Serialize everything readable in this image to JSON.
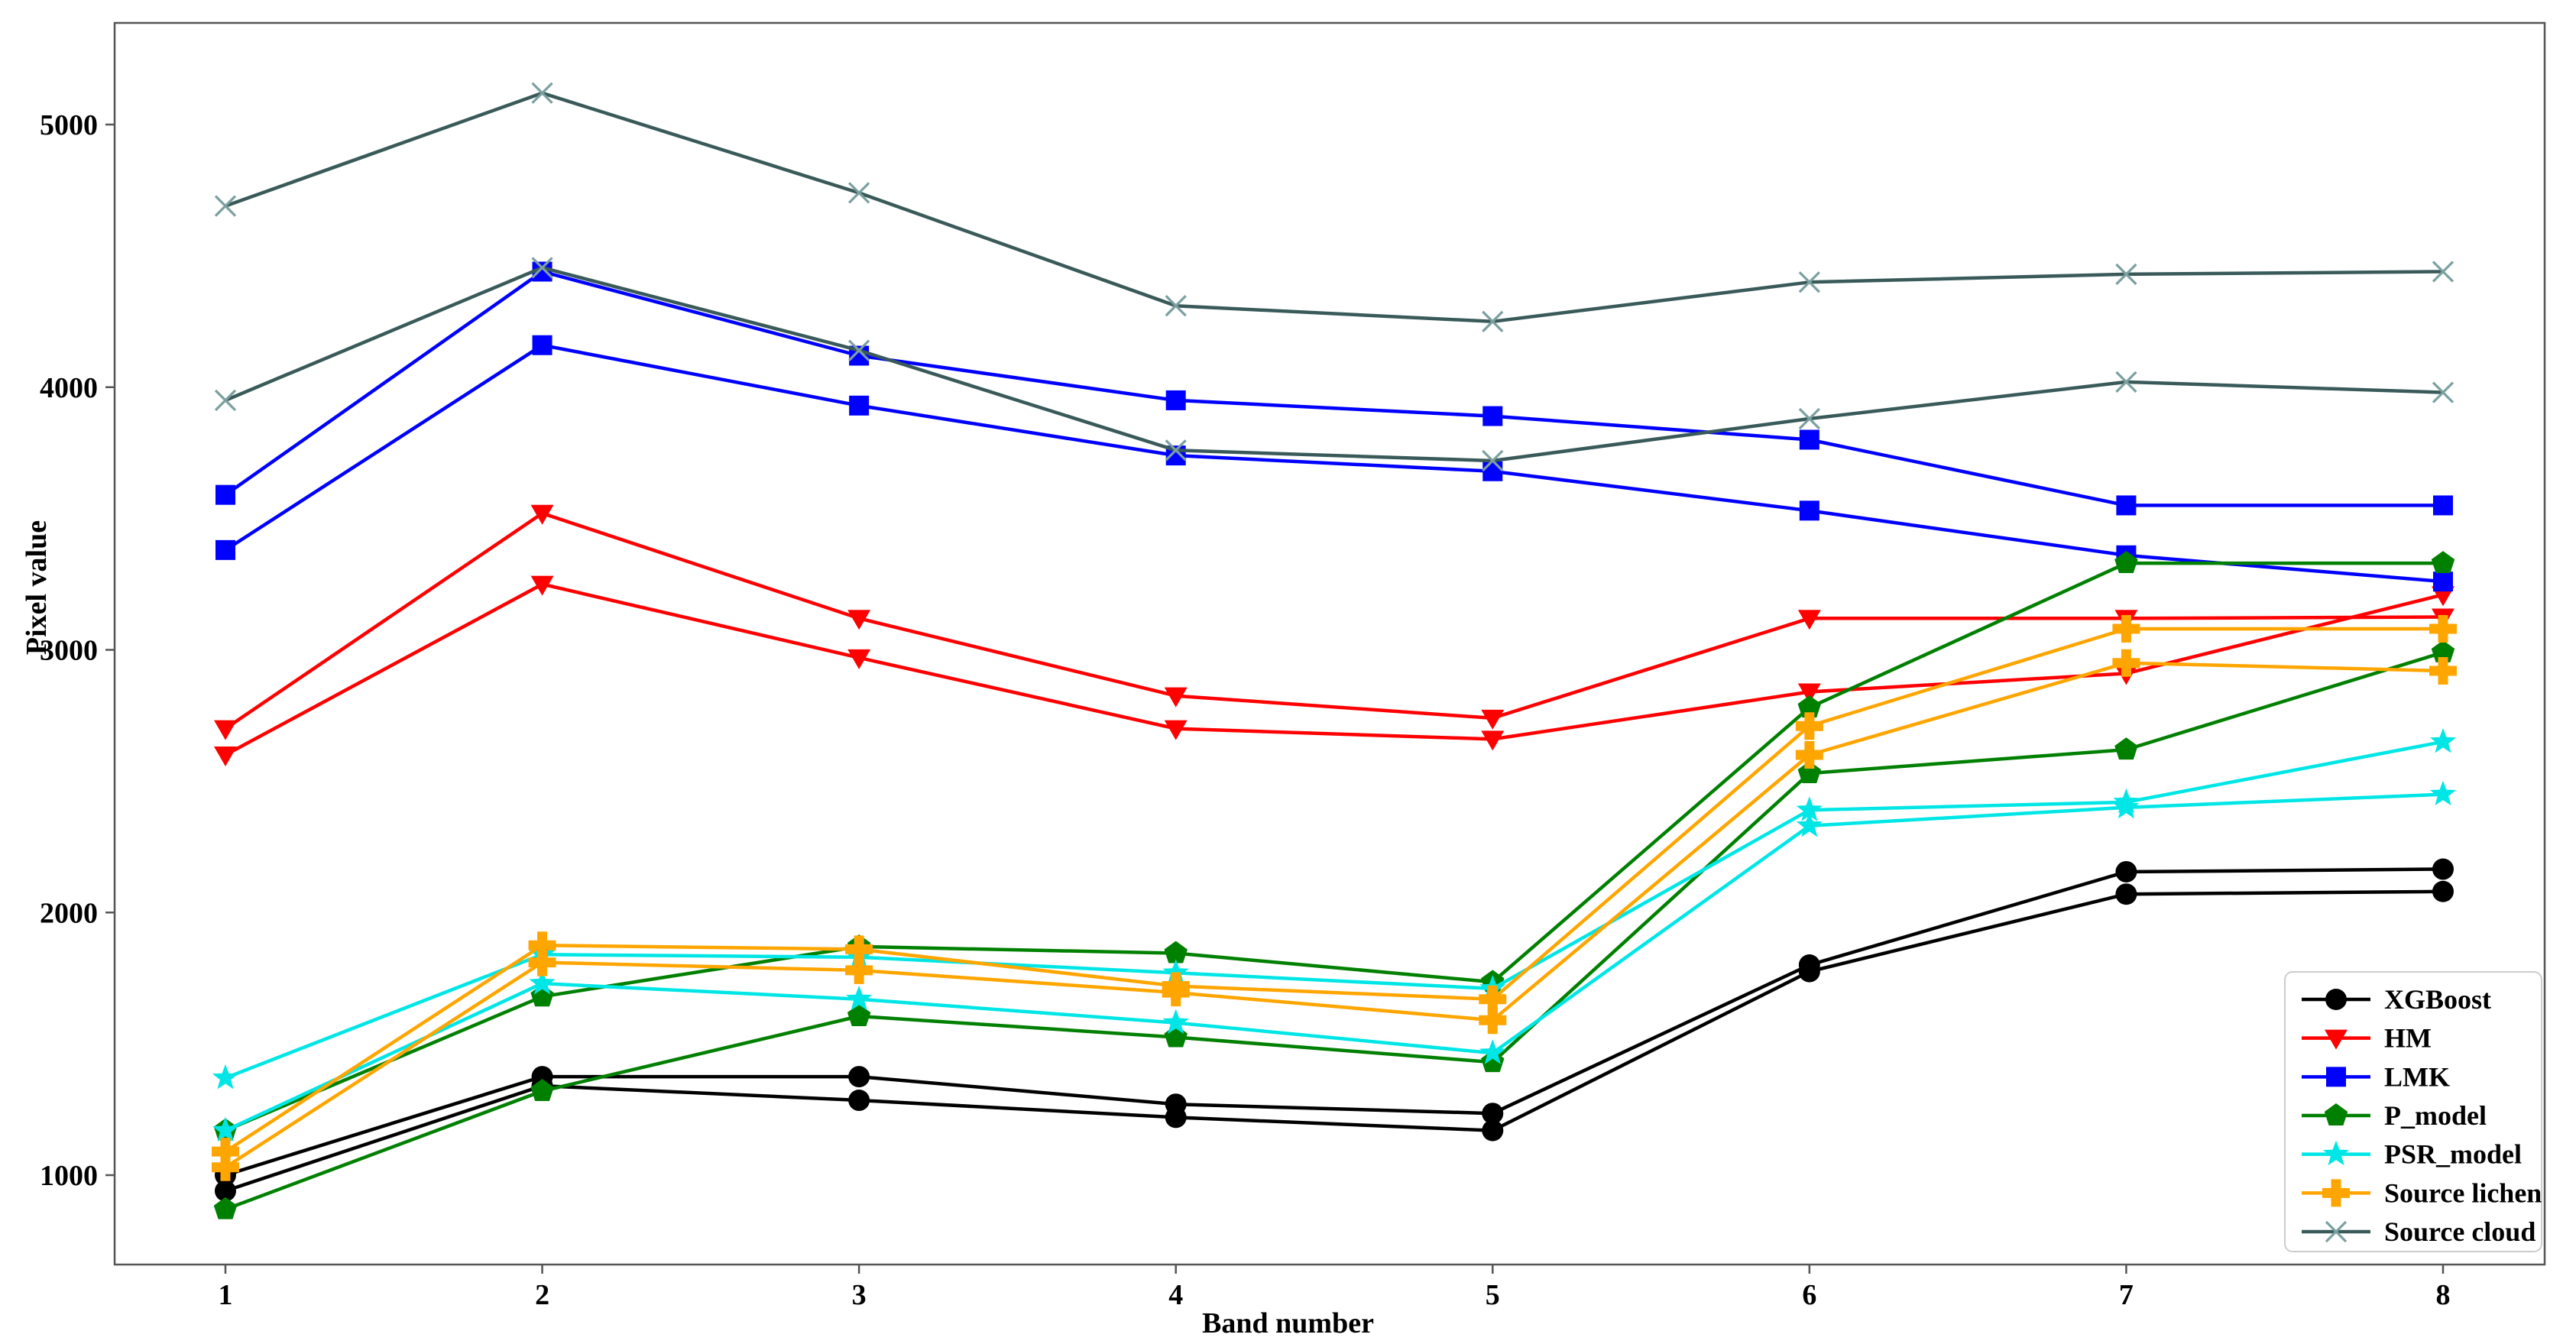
{
  "chart_data": {
    "type": "line",
    "title": "",
    "xlabel": "Band number",
    "ylabel": "Pixel value",
    "x": [
      1,
      2,
      3,
      4,
      5,
      6,
      7,
      8
    ],
    "xticks": [
      "1",
      "2",
      "3",
      "4",
      "5",
      "6",
      "7",
      "8"
    ],
    "yticks": [
      1000,
      2000,
      3000,
      4000,
      5000
    ],
    "xlim": [
      0.65,
      8.32
    ],
    "ylim": [
      660,
      5387
    ],
    "grid": false,
    "legend_position": "lower right",
    "axis_color": "#555555",
    "series": [
      {
        "name": "XGBoost",
        "color": "#000000",
        "marker": "circle",
        "lines": [
          [
            1000,
            1375,
            1375,
            1270,
            1235,
            1800,
            2155,
            2165
          ],
          [
            940,
            1340,
            1285,
            1220,
            1170,
            1775,
            2070,
            2080
          ]
        ]
      },
      {
        "name": "HM",
        "color": "#ff0000",
        "marker": "triangle-down",
        "lines": [
          [
            2700,
            3520,
            3120,
            2825,
            2740,
            3120,
            3120,
            3125
          ],
          [
            2600,
            3250,
            2970,
            2700,
            2660,
            2840,
            2910,
            3210
          ]
        ]
      },
      {
        "name": "LMK",
        "color": "#0000ff",
        "marker": "square",
        "lines": [
          [
            3590,
            4440,
            4120,
            3950,
            3890,
            3800,
            3550,
            3550
          ],
          [
            3380,
            4160,
            3930,
            3740,
            3680,
            3530,
            3360,
            3260
          ]
        ]
      },
      {
        "name": "P_model",
        "color": "#008000",
        "marker": "pentagon",
        "lines": [
          [
            1170,
            1680,
            1870,
            1845,
            1735,
            2780,
            3330,
            3330
          ],
          [
            870,
            1320,
            1605,
            1525,
            1430,
            2530,
            2620,
            2990
          ]
        ]
      },
      {
        "name": "PSR_model",
        "color": "#00e6e6",
        "marker": "star",
        "lines": [
          [
            1370,
            1840,
            1830,
            1770,
            1710,
            2390,
            2420,
            2650
          ],
          [
            1170,
            1730,
            1670,
            1580,
            1465,
            2330,
            2400,
            2450
          ]
        ]
      },
      {
        "name": "Source lichen",
        "color": "#ffa500",
        "marker": "plus",
        "lines": [
          [
            1090,
            1875,
            1860,
            1720,
            1670,
            2710,
            3080,
            3080
          ],
          [
            1030,
            1810,
            1780,
            1695,
            1590,
            2600,
            2950,
            2920
          ]
        ]
      },
      {
        "name": "Source cloud",
        "color": "#3a5a5a",
        "marker": "x",
        "marker_color": "#7ca0a0",
        "lines": [
          [
            4690,
            5120,
            4740,
            4310,
            4250,
            4400,
            4430,
            4440
          ],
          [
            3950,
            4455,
            4140,
            3760,
            3720,
            3880,
            4020,
            3980
          ]
        ]
      }
    ]
  }
}
